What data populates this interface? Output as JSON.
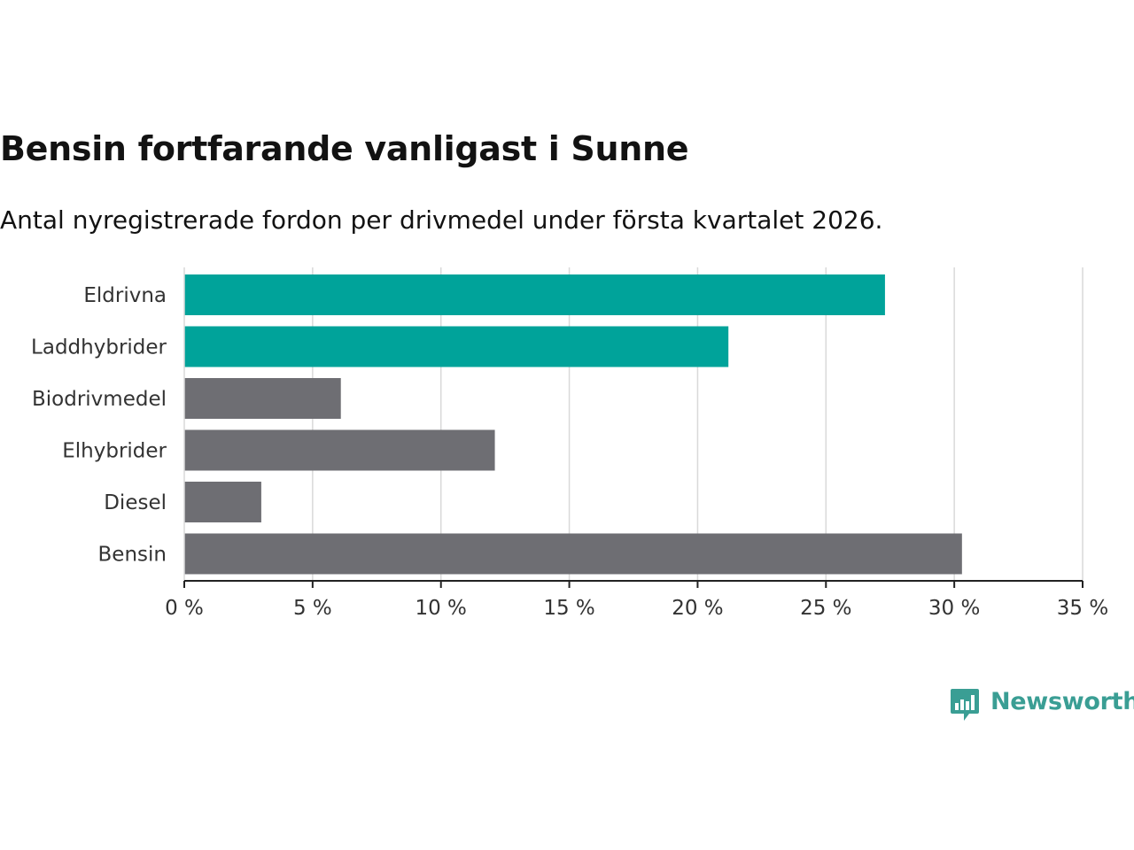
{
  "chart_data": {
    "type": "bar",
    "orientation": "horizontal",
    "title": "Bensin fortfarande vanligast i Sunne",
    "subtitle": "Antal nyregistrerade fordon per drivmedel under första kvartalet 2026.",
    "categories": [
      "Eldrivna",
      "Laddhybrider",
      "Biodrivmedel",
      "Elhybrider",
      "Diesel",
      "Bensin"
    ],
    "values": [
      27.3,
      21.2,
      6.1,
      12.1,
      3.0,
      30.3
    ],
    "value_unit": "%",
    "highlighted": [
      true,
      true,
      false,
      false,
      false,
      false
    ],
    "xlim": [
      0,
      35
    ],
    "xticks": [
      0,
      5,
      10,
      15,
      20,
      25,
      30,
      35
    ],
    "xtick_labels": [
      "0 %",
      "5 %",
      "10 %",
      "15 %",
      "20 %",
      "25 %",
      "30 %",
      "35 %"
    ],
    "xlabel": "",
    "ylabel": "",
    "grid": "vertical",
    "colors": {
      "highlight": "#00a39a",
      "default": "#6e6e73",
      "grid": "#d9d9d9",
      "axis": "#222222",
      "label": "#333333"
    }
  },
  "branding": {
    "name": "Newsworthy",
    "icon": "newsworthy-logo-icon",
    "color": "#3a9e94"
  }
}
